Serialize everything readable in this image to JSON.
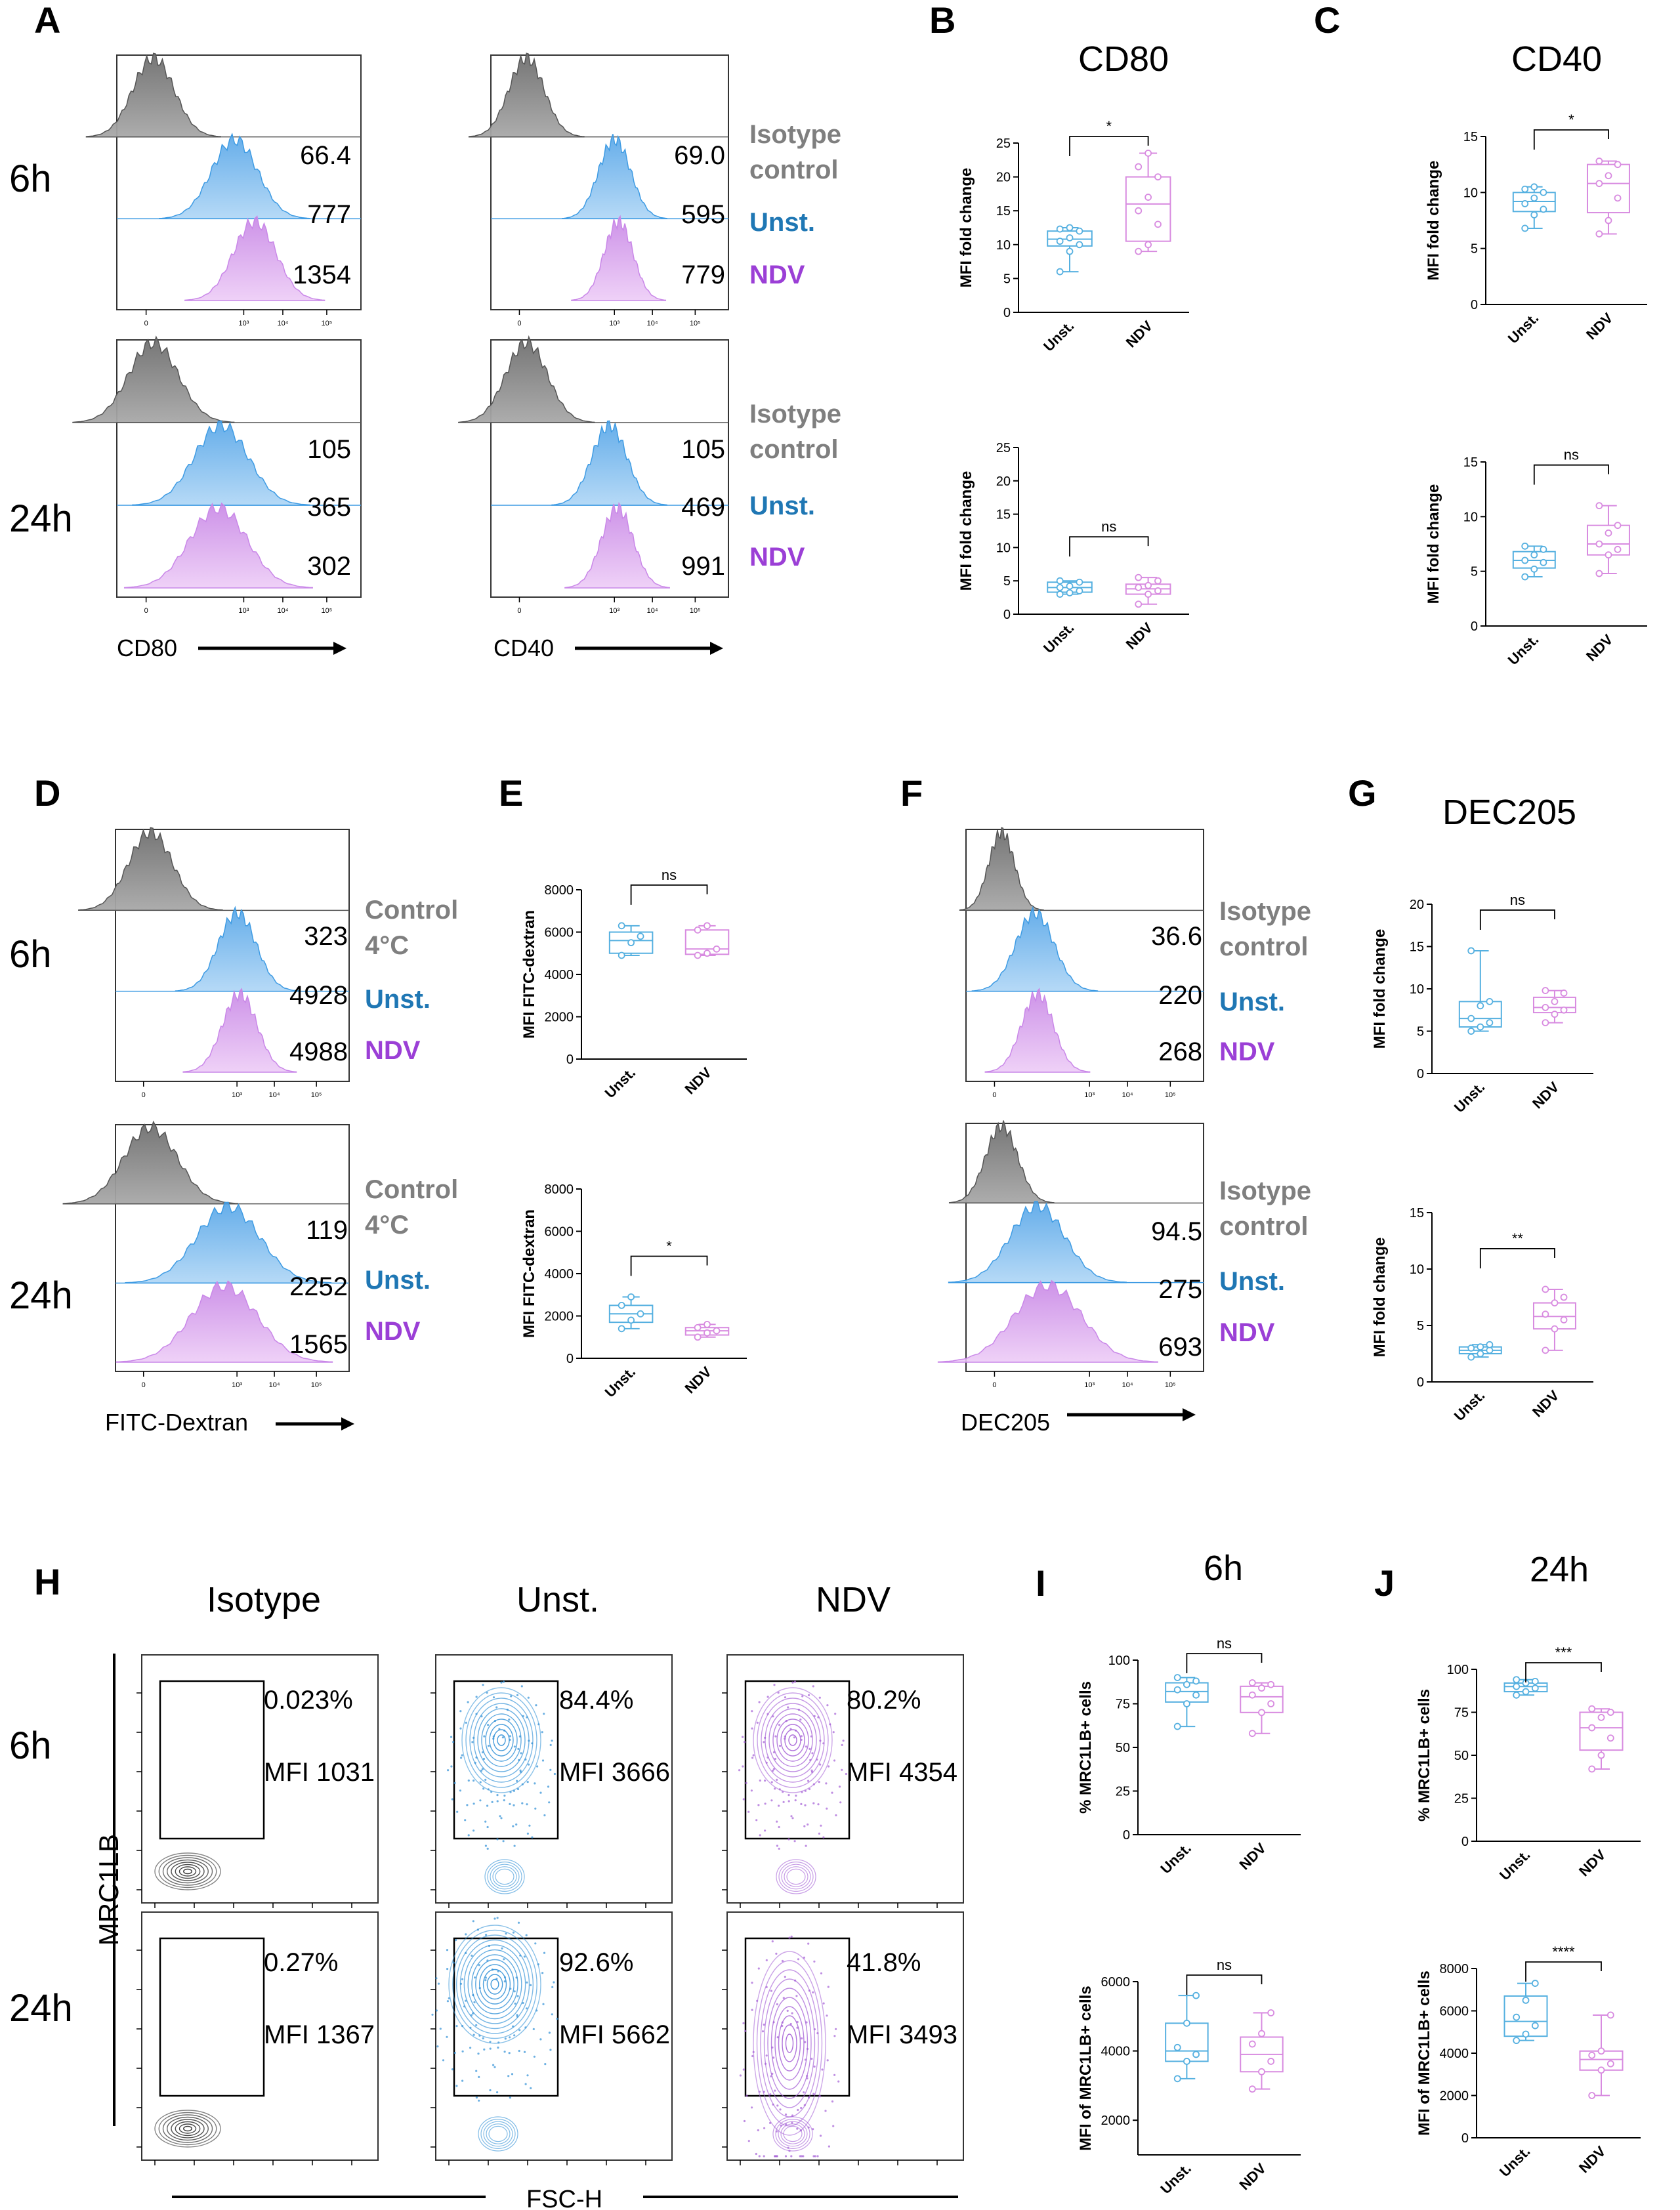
{
  "panel_labels": {
    "A": "A",
    "B": "B",
    "C": "C",
    "D": "D",
    "E": "E",
    "F": "F",
    "G": "G",
    "H": "H",
    "I": "I",
    "J": "J"
  },
  "time_labels": {
    "t6": "6h",
    "t24": "24h"
  },
  "colors": {
    "isotype": "#7f7f7f",
    "unst": "#3e9be3",
    "ndv": "#c987e8",
    "unst_text": "#1f77b4",
    "ndv_text": "#9b3fd6",
    "box_unst": "#55b0e0",
    "box_ndv": "#d88be0"
  },
  "histograms": {
    "axis_ticks": [
      "0",
      "10³",
      "10⁴",
      "10⁵"
    ],
    "A": {
      "axis_label": "CD80",
      "h6": {
        "isotype": "66.4",
        "unst": "777",
        "ndv": "1354"
      },
      "h24": {
        "isotype": "105",
        "unst": "365",
        "ndv": "302"
      }
    },
    "A2": {
      "axis_label": "CD40",
      "h6": {
        "isotype": "69.0",
        "unst": "595",
        "ndv": "779"
      },
      "h24": {
        "isotype": "105",
        "unst": "469",
        "ndv": "991"
      },
      "legend": {
        "iso1": "Isotype",
        "iso2": "control",
        "unst": "Unst.",
        "ndv": "NDV"
      }
    },
    "D": {
      "axis_label": "FITC-Dextran",
      "h6": {
        "isotype": "323",
        "unst": "4928",
        "ndv": "4988"
      },
      "h24": {
        "isotype": "119",
        "unst": "2252",
        "ndv": "1565"
      },
      "legend": {
        "iso1": "Control",
        "iso2": "4°C",
        "unst": "Unst.",
        "ndv": "NDV"
      }
    },
    "F": {
      "axis_label": "DEC205",
      "h6": {
        "isotype": "36.6",
        "unst": "220",
        "ndv": "268"
      },
      "h24": {
        "isotype": "94.5",
        "unst": "275",
        "ndv": "693"
      },
      "legend": {
        "iso1": "Isotype",
        "iso2": "control",
        "unst": "Unst.",
        "ndv": "NDV"
      }
    }
  },
  "contour": {
    "col_titles": {
      "iso": "Isotype",
      "unst": "Unst.",
      "ndv": "NDV"
    },
    "y_label": "MRC1LB",
    "x_label": "FSC-H",
    "h6": {
      "iso_pct": "0.023%",
      "iso_mfi": "MFI 1031",
      "unst_pct": "84.4%",
      "unst_mfi": "MFI 3666",
      "ndv_pct": "80.2%",
      "ndv_mfi": "MFI 4354"
    },
    "h24": {
      "iso_pct": "0.27%",
      "iso_mfi": "MFI 1367",
      "unst_pct": "92.6%",
      "unst_mfi": "MFI 5662",
      "ndv_pct": "41.8%",
      "ndv_mfi": "MFI 3493"
    }
  },
  "chart_data": [
    {
      "id": "B1",
      "type": "box",
      "title": "CD80",
      "ylabel": "MFI fold change",
      "categories": [
        "Unst.",
        "NDV"
      ],
      "ylim": [
        0,
        25
      ],
      "yticks": [
        0,
        5,
        10,
        15,
        20,
        25
      ],
      "significance": "*",
      "series": [
        {
          "name": "Unst.",
          "min": 6,
          "q1": 9.8,
          "median": 10.8,
          "q3": 12,
          "max": 12.5,
          "points": [
            6,
            9,
            10,
            10.5,
            11,
            12,
            12.3,
            12.5
          ]
        },
        {
          "name": "NDV",
          "min": 9,
          "q1": 10.5,
          "median": 16,
          "q3": 20,
          "max": 23.5,
          "points": [
            9,
            10,
            13,
            15,
            17,
            20,
            21.5,
            23.5
          ]
        }
      ]
    },
    {
      "id": "B2",
      "type": "box",
      "title": "",
      "ylabel": "MFI fold change",
      "categories": [
        "Unst.",
        "NDV"
      ],
      "ylim": [
        0,
        25
      ],
      "yticks": [
        0,
        5,
        10,
        15,
        20,
        25
      ],
      "significance": "ns",
      "series": [
        {
          "name": "Unst.",
          "min": 3,
          "q1": 3.3,
          "median": 4,
          "q3": 4.8,
          "max": 5,
          "points": [
            3,
            3.2,
            3.5,
            4,
            4.2,
            4.8,
            5
          ]
        },
        {
          "name": "NDV",
          "min": 1.5,
          "q1": 3,
          "median": 3.8,
          "q3": 4.5,
          "max": 5.5,
          "points": [
            1.5,
            3,
            3.5,
            4,
            4.3,
            5,
            5.5
          ]
        }
      ]
    },
    {
      "id": "C1",
      "type": "box",
      "title": "CD40",
      "ylabel": "MFI fold change",
      "categories": [
        "Unst.",
        "NDV"
      ],
      "ylim": [
        0,
        15
      ],
      "yticks": [
        0,
        5,
        10,
        15
      ],
      "significance": "*",
      "series": [
        {
          "name": "Unst.",
          "min": 6.8,
          "q1": 8.3,
          "median": 9.2,
          "q3": 10,
          "max": 10.5,
          "points": [
            6.8,
            8,
            8.5,
            9,
            9.5,
            10,
            10.3,
            10.5
          ]
        },
        {
          "name": "NDV",
          "min": 6.3,
          "q1": 8.2,
          "median": 10.8,
          "q3": 12.5,
          "max": 12.8,
          "points": [
            6.3,
            7.5,
            9.5,
            10.8,
            11.5,
            12.5,
            12.8
          ]
        }
      ]
    },
    {
      "id": "C2",
      "type": "box",
      "title": "",
      "ylabel": "MFI fold change",
      "categories": [
        "Unst.",
        "NDV"
      ],
      "ylim": [
        0,
        15
      ],
      "yticks": [
        0,
        5,
        10,
        15
      ],
      "significance": "ns",
      "series": [
        {
          "name": "Unst.",
          "min": 4.5,
          "q1": 5.3,
          "median": 6,
          "q3": 6.8,
          "max": 7.3,
          "points": [
            4.5,
            5.2,
            5.8,
            6,
            6.5,
            7,
            7.3
          ]
        },
        {
          "name": "NDV",
          "min": 4.8,
          "q1": 6.5,
          "median": 7.5,
          "q3": 9.2,
          "max": 11,
          "points": [
            4.8,
            6.5,
            7,
            7.5,
            8.5,
            9.2,
            11
          ]
        }
      ]
    },
    {
      "id": "E1",
      "type": "box",
      "title": "",
      "ylabel": "MFI FITC-dextran",
      "categories": [
        "Unst.",
        "NDV"
      ],
      "ylim": [
        0,
        8000
      ],
      "yticks": [
        0,
        2000,
        4000,
        6000,
        8000
      ],
      "significance": "ns",
      "series": [
        {
          "name": "Unst.",
          "min": 4900,
          "q1": 5000,
          "median": 5600,
          "q3": 6000,
          "max": 6300,
          "points": [
            4900,
            5500,
            5800,
            6300
          ]
        },
        {
          "name": "NDV",
          "min": 4900,
          "q1": 4950,
          "median": 5200,
          "q3": 6100,
          "max": 6300,
          "points": [
            4900,
            5000,
            5200,
            6100,
            6300
          ]
        }
      ]
    },
    {
      "id": "E2",
      "type": "box",
      "title": "",
      "ylabel": "MFI FITC-dextran",
      "categories": [
        "Unst.",
        "NDV"
      ],
      "ylim": [
        0,
        8000
      ],
      "yticks": [
        0,
        2000,
        4000,
        6000,
        8000
      ],
      "significance": "*",
      "series": [
        {
          "name": "Unst.",
          "min": 1400,
          "q1": 1700,
          "median": 2100,
          "q3": 2500,
          "max": 2900,
          "points": [
            1400,
            1800,
            2100,
            2500,
            2900
          ]
        },
        {
          "name": "NDV",
          "min": 1000,
          "q1": 1100,
          "median": 1300,
          "q3": 1450,
          "max": 1600,
          "points": [
            1000,
            1200,
            1300,
            1450,
            1600
          ]
        }
      ]
    },
    {
      "id": "G1",
      "type": "box",
      "title": "DEC205",
      "ylabel": "MFI fold change",
      "categories": [
        "Unst.",
        "NDV"
      ],
      "ylim": [
        0,
        20
      ],
      "yticks": [
        0,
        5,
        10,
        15,
        20
      ],
      "significance": "ns",
      "series": [
        {
          "name": "Unst.",
          "min": 5,
          "q1": 5.5,
          "median": 6.5,
          "q3": 8.5,
          "max": 14.5,
          "points": [
            5,
            5.5,
            6,
            6.5,
            8,
            8.5,
            14.5
          ]
        },
        {
          "name": "NDV",
          "min": 6,
          "q1": 7.2,
          "median": 7.8,
          "q3": 9,
          "max": 9.8,
          "points": [
            6,
            7,
            7.5,
            7.8,
            8.5,
            9.5,
            9.8
          ]
        }
      ]
    },
    {
      "id": "G2",
      "type": "box",
      "title": "",
      "ylabel": "MFI fold change",
      "categories": [
        "Unst.",
        "NDV"
      ],
      "ylim": [
        0,
        15
      ],
      "yticks": [
        0,
        5,
        10,
        15
      ],
      "significance": "**",
      "series": [
        {
          "name": "Unst.",
          "min": 2.2,
          "q1": 2.5,
          "median": 2.8,
          "q3": 3.1,
          "max": 3.3,
          "points": [
            2.2,
            2.5,
            2.8,
            3,
            3.1,
            3.3
          ]
        },
        {
          "name": "NDV",
          "min": 2.8,
          "q1": 4.7,
          "median": 5.8,
          "q3": 7,
          "max": 8.2,
          "points": [
            2.8,
            4.7,
            5.5,
            6,
            7,
            7.5,
            8.2
          ]
        }
      ]
    },
    {
      "id": "I1",
      "type": "box",
      "title": "6h",
      "ylabel": "% MRC1LB+ cells",
      "categories": [
        "Unst.",
        "NDV"
      ],
      "ylim": [
        0,
        100
      ],
      "yticks": [
        0,
        25,
        50,
        75,
        100
      ],
      "significance": "ns",
      "series": [
        {
          "name": "Unst.",
          "min": 62,
          "q1": 76,
          "median": 82,
          "q3": 87,
          "max": 90,
          "points": [
            62,
            75,
            80,
            83,
            86,
            88,
            90
          ]
        },
        {
          "name": "NDV",
          "min": 58,
          "q1": 70,
          "median": 79,
          "q3": 85,
          "max": 87,
          "points": [
            58,
            70,
            75,
            80,
            84,
            86,
            87
          ]
        }
      ]
    },
    {
      "id": "I2",
      "type": "box",
      "title": "",
      "ylabel": "MFI of MRC1LB+ cells",
      "categories": [
        "Unst.",
        "NDV"
      ],
      "ylim": [
        1000,
        6000
      ],
      "yticks": [
        2000,
        4000,
        6000
      ],
      "significance": "ns",
      "series": [
        {
          "name": "Unst.",
          "min": 3200,
          "q1": 3700,
          "median": 4000,
          "q3": 4800,
          "max": 5600,
          "points": [
            3200,
            3700,
            3900,
            4100,
            4800,
            5600
          ]
        },
        {
          "name": "NDV",
          "min": 2900,
          "q1": 3400,
          "median": 3900,
          "q3": 4400,
          "max": 5100,
          "points": [
            2900,
            3400,
            3700,
            4200,
            4500,
            5100
          ]
        }
      ]
    },
    {
      "id": "J1",
      "type": "box",
      "title": "24h",
      "ylabel": "% MRC1LB+ cells",
      "categories": [
        "Unst.",
        "NDV"
      ],
      "ylim": [
        0,
        100
      ],
      "yticks": [
        0,
        25,
        50,
        75,
        100
      ],
      "significance": "***",
      "series": [
        {
          "name": "Unst.",
          "min": 85,
          "q1": 87,
          "median": 90,
          "q3": 92,
          "max": 94,
          "points": [
            85,
            87,
            89,
            90,
            92,
            93,
            94
          ]
        },
        {
          "name": "NDV",
          "min": 42,
          "q1": 53,
          "median": 66,
          "q3": 75,
          "max": 77,
          "points": [
            42,
            50,
            60,
            66,
            72,
            75,
            77
          ]
        }
      ]
    },
    {
      "id": "J2",
      "type": "box",
      "title": "",
      "ylabel": "MFI of MRC1LB+ cells",
      "categories": [
        "Unst.",
        "NDV"
      ],
      "ylim": [
        0,
        8000
      ],
      "yticks": [
        0,
        2000,
        4000,
        6000,
        8000
      ],
      "significance": "****",
      "series": [
        {
          "name": "Unst.",
          "min": 4600,
          "q1": 4800,
          "median": 5500,
          "q3": 6700,
          "max": 7300,
          "points": [
            4600,
            4900,
            5300,
            5700,
            6500,
            7300
          ]
        },
        {
          "name": "NDV",
          "min": 2000,
          "q1": 3200,
          "median": 3700,
          "q3": 4100,
          "max": 5800,
          "points": [
            2000,
            3200,
            3500,
            3900,
            4100,
            5800
          ]
        }
      ]
    }
  ]
}
